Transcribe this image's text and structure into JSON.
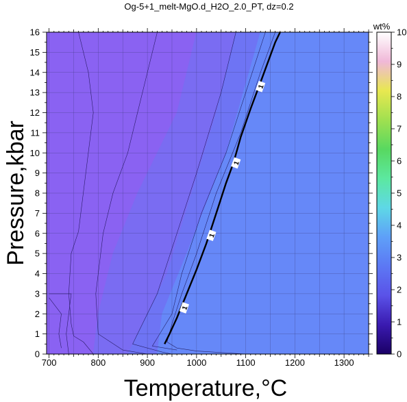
{
  "chart_data": {
    "type": "heatmap",
    "title": "Og-5+1_melt-MgO.d_H2O_2.0_PT, dz=0.2",
    "xlabel": "Temperature,°C",
    "ylabel": "Pressure,kbar",
    "xlim": [
      695,
      1350
    ],
    "ylim": [
      0,
      16
    ],
    "x_ticks": [
      700,
      800,
      900,
      1000,
      1100,
      1200,
      1300
    ],
    "y_ticks": [
      0,
      1,
      2,
      3,
      4,
      5,
      6,
      7,
      8,
      9,
      10,
      11,
      12,
      13,
      14,
      15,
      16
    ],
    "grid": true,
    "colorbar": {
      "label": "wt%",
      "range": [
        0,
        10
      ],
      "ticks": [
        0,
        1,
        2,
        3,
        4,
        5,
        6,
        7,
        8,
        9,
        10
      ],
      "colors": [
        "#1a0066",
        "#3a1ab0",
        "#5a52e8",
        "#5c78f4",
        "#5ea0f8",
        "#5ed8e6",
        "#5ce8a0",
        "#58d860",
        "#a0e050",
        "#e8e850",
        "#f0b8d8",
        "#ffffff"
      ]
    },
    "regions": [
      {
        "name": "low",
        "color": "#8a62f2",
        "points": [
          [
            695,
            0
          ],
          [
            695,
            16
          ],
          [
            1000,
            16
          ],
          [
            960,
            12
          ],
          [
            880,
            8
          ],
          [
            830,
            5
          ],
          [
            800,
            2
          ],
          [
            790,
            0
          ]
        ]
      },
      {
        "name": "mid",
        "color": "#7a6cf2",
        "points": [
          [
            790,
            0
          ],
          [
            800,
            2
          ],
          [
            830,
            5
          ],
          [
            880,
            8
          ],
          [
            960,
            12
          ],
          [
            1000,
            16
          ],
          [
            1080,
            16
          ],
          [
            1040,
            12
          ],
          [
            990,
            8
          ],
          [
            940,
            4
          ],
          [
            880,
            1
          ],
          [
            860,
            0
          ]
        ]
      },
      {
        "name": "mid2",
        "color": "#6e74f4",
        "points": [
          [
            860,
            0
          ],
          [
            880,
            1
          ],
          [
            940,
            4
          ],
          [
            990,
            8
          ],
          [
            1040,
            12
          ],
          [
            1080,
            16
          ],
          [
            1130,
            16
          ],
          [
            1060,
            10
          ],
          [
            980,
            5
          ],
          [
            930,
            2
          ],
          [
            920,
            0
          ]
        ]
      },
      {
        "name": "high",
        "color": "#6688f8",
        "points": [
          [
            920,
            0
          ],
          [
            930,
            2
          ],
          [
            980,
            5
          ],
          [
            1060,
            10
          ],
          [
            1130,
            16
          ],
          [
            1350,
            16
          ],
          [
            1350,
            0
          ]
        ]
      }
    ],
    "thin_contours": [
      [
        [
          700,
          3
        ],
        [
          745,
          3
        ],
        [
          740,
          2
        ],
        [
          735,
          1
        ],
        [
          740,
          0
        ]
      ],
      [
        [
          700,
          2.8
        ],
        [
          725,
          2
        ],
        [
          720,
          1
        ],
        [
          725,
          0.3
        ]
      ],
      [
        [
          760,
          16
        ],
        [
          780,
          14
        ],
        [
          790,
          12
        ],
        [
          760,
          6.1
        ],
        [
          745,
          5
        ],
        [
          740,
          3
        ],
        [
          745,
          1.5
        ],
        [
          750,
          0.9
        ],
        [
          770,
          0.6
        ],
        [
          790,
          0
        ]
      ],
      [
        [
          920,
          16
        ],
        [
          900,
          14
        ],
        [
          880,
          12
        ],
        [
          860,
          10
        ],
        [
          830,
          8
        ],
        [
          810,
          6
        ],
        [
          795,
          3
        ],
        [
          800,
          1
        ],
        [
          850,
          0.2
        ],
        [
          900,
          0
        ]
      ],
      [
        [
          1080,
          16
        ],
        [
          1050,
          13
        ],
        [
          1000,
          9
        ],
        [
          960,
          6
        ],
        [
          920,
          3
        ],
        [
          880,
          1
        ],
        [
          870,
          0.5
        ],
        [
          930,
          0.1
        ],
        [
          950,
          0
        ]
      ],
      [
        [
          1140,
          16
        ],
        [
          1100,
          13
        ],
        [
          1060,
          10
        ],
        [
          1010,
          7
        ],
        [
          970,
          4
        ],
        [
          950,
          2
        ],
        [
          920,
          0.8
        ],
        [
          910,
          0.4
        ],
        [
          960,
          0.2
        ]
      ],
      [
        [
          1160,
          16
        ],
        [
          1130,
          14
        ],
        [
          1090,
          11
        ],
        [
          1040,
          8
        ],
        [
          1000,
          5
        ],
        [
          970,
          3
        ],
        [
          950,
          1.5
        ],
        [
          940,
          0.6
        ],
        [
          960,
          0.3
        ],
        [
          1000,
          0.15
        ],
        [
          1100,
          0
        ]
      ]
    ],
    "bold_contour": {
      "level": 1,
      "label": "1",
      "points": [
        [
          935,
          0.5
        ],
        [
          945,
          1
        ],
        [
          960,
          1.8
        ],
        [
          980,
          3
        ],
        [
          1000,
          4.2
        ],
        [
          1020,
          5.5
        ],
        [
          1040,
          7
        ],
        [
          1060,
          8.5
        ],
        [
          1075,
          9.5
        ],
        [
          1090,
          10.8
        ],
        [
          1110,
          12.2
        ],
        [
          1130,
          13.5
        ],
        [
          1145,
          14.5
        ],
        [
          1160,
          15.5
        ],
        [
          1170,
          16
        ]
      ],
      "label_positions": [
        [
          975,
          2.3
        ],
        [
          1030,
          5.9
        ],
        [
          1080,
          9.5
        ],
        [
          1130,
          13.3
        ]
      ]
    }
  }
}
